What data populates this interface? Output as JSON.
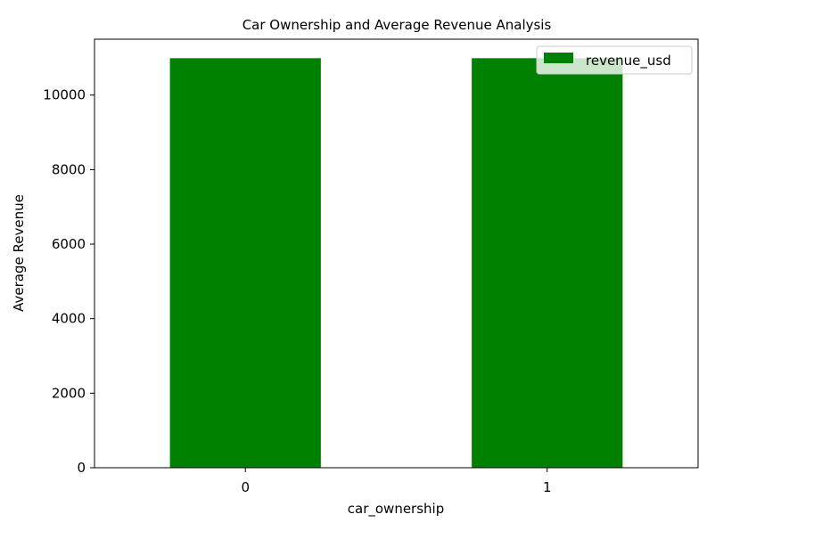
{
  "chart_data": {
    "type": "bar",
    "title": "Car Ownership and Average Revenue Analysis",
    "xlabel": "car_ownership",
    "ylabel": "Average Revenue",
    "categories": [
      "0",
      "1"
    ],
    "series": [
      {
        "name": "revenue_usd",
        "values": [
          10990,
          10990
        ]
      }
    ],
    "ylim": [
      0,
      11500
    ],
    "yticks": [
      0,
      2000,
      4000,
      6000,
      8000,
      10000
    ],
    "ytick_labels": [
      "0",
      "2000",
      "4000",
      "6000",
      "8000",
      "10000"
    ],
    "grid": false,
    "legend_position": "top-right",
    "colors": {
      "bar": "#008000",
      "axis": "#000000",
      "background": "#ffffff"
    }
  }
}
